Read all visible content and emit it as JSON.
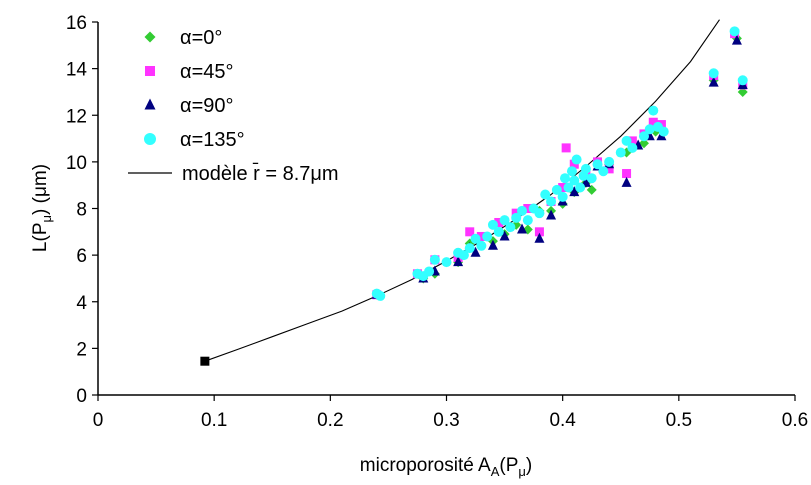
{
  "chart_data": {
    "type": "scatter",
    "title": "",
    "xlabel": "microporosité Aₐ(Pμ)",
    "xlabel_parts": {
      "main": "microporosité A",
      "sub": "A",
      "paren": "(P",
      "mu": "μ",
      "close": ")"
    },
    "ylabel": "L(Pμ) (μm)",
    "ylabel_parts": {
      "main": "L(P",
      "sub": "μ",
      "close": ") (μm)"
    },
    "xlim": [
      0,
      0.6
    ],
    "ylim": [
      0,
      16
    ],
    "xticks": [
      "0",
      "0.1",
      "0.2",
      "0.3",
      "0.4",
      "0.5",
      "0.6"
    ],
    "yticks": [
      "0",
      "2",
      "4",
      "6",
      "8",
      "10",
      "12",
      "14",
      "16"
    ],
    "grid": false,
    "legend_position": "top-left",
    "legend": [
      {
        "label": "α=0°",
        "marker": "diamond",
        "color": "#33cc33"
      },
      {
        "label": "α=45°",
        "marker": "square",
        "color": "#ff33ff"
      },
      {
        "label": "α=90°",
        "marker": "triangle",
        "color": "#000080"
      },
      {
        "label": "α=135°",
        "marker": "circle",
        "color": "#33ffff"
      },
      {
        "label": "modèle r̄ = 8.7μm",
        "marker": "line",
        "color": "#000000"
      }
    ],
    "series": [
      {
        "name": "α=0°",
        "color": "#33cc33",
        "marker": "diamond",
        "points": [
          [
            0.24,
            4.3
          ],
          [
            0.28,
            5.0
          ],
          [
            0.29,
            5.2
          ],
          [
            0.31,
            5.7
          ],
          [
            0.32,
            6.5
          ],
          [
            0.34,
            6.6
          ],
          [
            0.35,
            6.9
          ],
          [
            0.36,
            7.3
          ],
          [
            0.37,
            7.1
          ],
          [
            0.38,
            7.9
          ],
          [
            0.39,
            7.9
          ],
          [
            0.4,
            8.2
          ],
          [
            0.41,
            8.7
          ],
          [
            0.42,
            9.1
          ],
          [
            0.425,
            8.8
          ],
          [
            0.44,
            9.9
          ],
          [
            0.455,
            10.4
          ],
          [
            0.47,
            10.8
          ],
          [
            0.48,
            11.3
          ],
          [
            0.53,
            13.5
          ],
          [
            0.55,
            15.3
          ],
          [
            0.555,
            13.0
          ]
        ]
      },
      {
        "name": "α=45°",
        "color": "#ff33ff",
        "marker": "square",
        "points": [
          [
            0.24,
            4.3
          ],
          [
            0.275,
            5.2
          ],
          [
            0.29,
            5.8
          ],
          [
            0.31,
            5.9
          ],
          [
            0.32,
            7.0
          ],
          [
            0.33,
            6.8
          ],
          [
            0.345,
            7.4
          ],
          [
            0.36,
            7.8
          ],
          [
            0.37,
            8.0
          ],
          [
            0.38,
            7.0
          ],
          [
            0.39,
            8.3
          ],
          [
            0.4,
            8.9
          ],
          [
            0.403,
            10.6
          ],
          [
            0.41,
            9.9
          ],
          [
            0.42,
            9.5
          ],
          [
            0.43,
            10.0
          ],
          [
            0.44,
            9.7
          ],
          [
            0.455,
            9.5
          ],
          [
            0.46,
            10.9
          ],
          [
            0.47,
            11.2
          ],
          [
            0.478,
            11.7
          ],
          [
            0.485,
            11.6
          ],
          [
            0.53,
            13.7
          ],
          [
            0.548,
            15.5
          ],
          [
            0.555,
            13.3
          ]
        ]
      },
      {
        "name": "α=90°",
        "color": "#000080",
        "marker": "triangle",
        "points": [
          [
            0.24,
            4.3
          ],
          [
            0.28,
            5.0
          ],
          [
            0.29,
            5.3
          ],
          [
            0.31,
            5.7
          ],
          [
            0.32,
            6.3
          ],
          [
            0.325,
            6.1
          ],
          [
            0.34,
            6.4
          ],
          [
            0.35,
            6.8
          ],
          [
            0.365,
            7.1
          ],
          [
            0.38,
            6.7
          ],
          [
            0.39,
            7.7
          ],
          [
            0.4,
            8.3
          ],
          [
            0.41,
            8.7
          ],
          [
            0.42,
            9.1
          ],
          [
            0.43,
            9.8
          ],
          [
            0.44,
            9.9
          ],
          [
            0.455,
            9.1
          ],
          [
            0.465,
            10.7
          ],
          [
            0.475,
            11.1
          ],
          [
            0.485,
            11.1
          ],
          [
            0.53,
            13.4
          ],
          [
            0.55,
            15.2
          ],
          [
            0.555,
            13.3
          ]
        ]
      },
      {
        "name": "α=135°",
        "color": "#33ffff",
        "marker": "circle",
        "points": [
          [
            0.24,
            4.35
          ],
          [
            0.243,
            4.25
          ],
          [
            0.275,
            5.2
          ],
          [
            0.28,
            5.1
          ],
          [
            0.285,
            5.3
          ],
          [
            0.29,
            5.8
          ],
          [
            0.3,
            5.7
          ],
          [
            0.31,
            6.1
          ],
          [
            0.315,
            6.0
          ],
          [
            0.32,
            6.3
          ],
          [
            0.325,
            6.7
          ],
          [
            0.33,
            6.4
          ],
          [
            0.335,
            6.8
          ],
          [
            0.34,
            7.3
          ],
          [
            0.345,
            7.0
          ],
          [
            0.35,
            7.5
          ],
          [
            0.355,
            7.2
          ],
          [
            0.36,
            7.6
          ],
          [
            0.365,
            7.9
          ],
          [
            0.37,
            7.5
          ],
          [
            0.375,
            8.0
          ],
          [
            0.38,
            7.8
          ],
          [
            0.385,
            8.6
          ],
          [
            0.39,
            8.3
          ],
          [
            0.395,
            8.8
          ],
          [
            0.4,
            8.5
          ],
          [
            0.402,
            9.3
          ],
          [
            0.405,
            8.9
          ],
          [
            0.408,
            9.6
          ],
          [
            0.41,
            9.2
          ],
          [
            0.412,
            10.1
          ],
          [
            0.415,
            8.9
          ],
          [
            0.418,
            9.4
          ],
          [
            0.42,
            9.7
          ],
          [
            0.425,
            9.3
          ],
          [
            0.43,
            9.9
          ],
          [
            0.435,
            9.6
          ],
          [
            0.44,
            10.0
          ],
          [
            0.45,
            10.4
          ],
          [
            0.455,
            10.9
          ],
          [
            0.46,
            10.6
          ],
          [
            0.47,
            11.1
          ],
          [
            0.475,
            11.4
          ],
          [
            0.478,
            12.2
          ],
          [
            0.482,
            11.5
          ],
          [
            0.487,
            11.3
          ],
          [
            0.53,
            13.8
          ],
          [
            0.548,
            15.6
          ],
          [
            0.555,
            13.5
          ]
        ]
      },
      {
        "name": "modèle r̄ = 8.7μm",
        "color": "#000000",
        "marker": "line",
        "points": [
          [
            0.092,
            1.45
          ],
          [
            0.12,
            1.95
          ],
          [
            0.15,
            2.5
          ],
          [
            0.18,
            3.05
          ],
          [
            0.21,
            3.6
          ],
          [
            0.24,
            4.25
          ],
          [
            0.27,
            4.95
          ],
          [
            0.3,
            5.75
          ],
          [
            0.33,
            6.6
          ],
          [
            0.36,
            7.55
          ],
          [
            0.39,
            8.6
          ],
          [
            0.42,
            9.8
          ],
          [
            0.45,
            11.1
          ],
          [
            0.48,
            12.6
          ],
          [
            0.51,
            14.3
          ],
          [
            0.535,
            16.1
          ]
        ]
      }
    ],
    "highlight_point": {
      "x": 0.092,
      "y": 1.45,
      "color": "#000000",
      "marker": "square"
    }
  }
}
